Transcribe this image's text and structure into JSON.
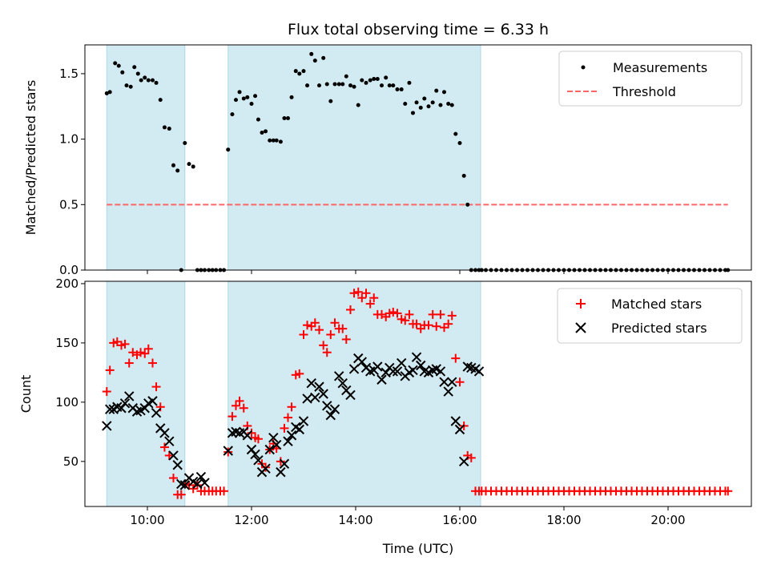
{
  "chart_data": {
    "title": "Flux total observing time = 6.33 h",
    "xlabel": "Time (UTC)",
    "x_unit": "hours UTC",
    "xlim": [
      8.8,
      21.6
    ],
    "x_ticks": [
      {
        "value": 10,
        "label": "10:00"
      },
      {
        "value": 12,
        "label": "12:00"
      },
      {
        "value": 14,
        "label": "14:00"
      },
      {
        "value": 16,
        "label": "16:00"
      },
      {
        "value": 18,
        "label": "18:00"
      },
      {
        "value": 20,
        "label": "20:00"
      }
    ],
    "observing_windows": [
      [
        9.22,
        10.72
      ],
      [
        11.55,
        16.4
      ]
    ],
    "colors": {
      "window": "#add8e6",
      "measurement": "#000000",
      "threshold": "#ff6666",
      "matched": "#ff0000",
      "predicted": "#000000"
    },
    "top_panel": {
      "type": "scatter",
      "ylabel": "Matched/Predicted stars",
      "ylim": [
        0,
        1.72
      ],
      "y_ticks": [
        0.0,
        0.5,
        1.0,
        1.5
      ],
      "y_tick_labels": [
        "0.0",
        "0.5",
        "1.0",
        "1.5"
      ],
      "legend": {
        "position": "top-right",
        "entries": [
          "Measurements",
          "Threshold"
        ]
      },
      "threshold": {
        "name": "Threshold",
        "value": 0.5,
        "x_range": [
          9.22,
          21.15
        ],
        "style": "dashed"
      },
      "measurements": {
        "name": "Measurements",
        "x": [
          9.22,
          9.28,
          9.38,
          9.45,
          9.52,
          9.6,
          9.68,
          9.75,
          9.82,
          9.88,
          9.95,
          10.02,
          10.1,
          10.17,
          10.25,
          10.33,
          10.42,
          10.5,
          10.58,
          10.65,
          10.72,
          10.8,
          10.88,
          10.96,
          11.03,
          11.1,
          11.18,
          11.25,
          11.32,
          11.4,
          11.47,
          11.55,
          11.63,
          11.7,
          11.77,
          11.85,
          11.92,
          12.0,
          12.07,
          12.13,
          12.2,
          12.27,
          12.35,
          12.42,
          12.48,
          12.56,
          12.63,
          12.7,
          12.77,
          12.85,
          12.92,
          13.0,
          13.07,
          13.15,
          13.22,
          13.3,
          13.38,
          13.45,
          13.52,
          13.6,
          13.68,
          13.75,
          13.82,
          13.9,
          13.97,
          14.05,
          14.12,
          14.2,
          14.28,
          14.35,
          14.42,
          14.5,
          14.58,
          14.65,
          14.72,
          14.8,
          14.88,
          14.95,
          15.03,
          15.1,
          15.17,
          15.25,
          15.32,
          15.4,
          15.48,
          15.55,
          15.63,
          15.7,
          15.78,
          15.85,
          15.92,
          16.0,
          16.08,
          16.15,
          16.22,
          16.3,
          16.37,
          16.42,
          16.5,
          16.6,
          16.7,
          16.8,
          16.9,
          17.0,
          17.1,
          17.2,
          17.3,
          17.4,
          17.5,
          17.6,
          17.7,
          17.8,
          17.9,
          18.0,
          18.1,
          18.2,
          18.3,
          18.4,
          18.5,
          18.6,
          18.7,
          18.8,
          18.9,
          19.0,
          19.1,
          19.2,
          19.3,
          19.4,
          19.5,
          19.6,
          19.7,
          19.8,
          19.9,
          20.0,
          20.1,
          20.2,
          20.3,
          20.4,
          20.5,
          20.6,
          20.7,
          20.8,
          20.9,
          21.0,
          21.1,
          21.15
        ],
        "y": [
          1.35,
          1.36,
          1.58,
          1.56,
          1.51,
          1.41,
          1.4,
          1.55,
          1.5,
          1.45,
          1.47,
          1.45,
          1.45,
          1.43,
          1.3,
          1.09,
          1.08,
          0.8,
          0.76,
          0.0,
          0.97,
          0.81,
          0.79,
          0.0,
          0.0,
          0.0,
          0.0,
          0.0,
          0.0,
          0.0,
          0.0,
          0.92,
          1.19,
          1.3,
          1.36,
          1.31,
          1.32,
          1.27,
          1.33,
          1.15,
          1.05,
          1.06,
          0.99,
          0.99,
          0.99,
          0.98,
          1.16,
          1.16,
          1.32,
          1.52,
          1.5,
          1.52,
          1.41,
          1.65,
          1.6,
          1.41,
          1.62,
          1.42,
          1.29,
          1.42,
          1.42,
          1.42,
          1.48,
          1.41,
          1.4,
          1.26,
          1.45,
          1.43,
          1.45,
          1.46,
          1.46,
          1.41,
          1.47,
          1.41,
          1.41,
          1.38,
          1.38,
          1.27,
          1.43,
          1.2,
          1.28,
          1.24,
          1.31,
          1.25,
          1.28,
          1.37,
          1.26,
          1.36,
          1.27,
          1.26,
          1.04,
          0.97,
          0.72,
          0.5,
          0,
          0,
          0,
          0,
          0,
          0,
          0,
          0,
          0,
          0,
          0,
          0,
          0,
          0,
          0,
          0,
          0,
          0,
          0,
          0,
          0,
          0,
          0,
          0,
          0,
          0,
          0,
          0,
          0,
          0,
          0,
          0,
          0,
          0,
          0,
          0,
          0,
          0,
          0,
          0,
          0,
          0,
          0,
          0,
          0,
          0,
          0,
          0,
          0,
          0,
          0,
          0
        ]
      }
    },
    "bottom_panel": {
      "type": "scatter",
      "ylabel": "Count",
      "ylim": [
        12,
        202
      ],
      "y_ticks": [
        50,
        100,
        150,
        200
      ],
      "y_tick_labels": [
        "50",
        "100",
        "150",
        "200"
      ],
      "legend": {
        "position": "top-right",
        "entries": [
          "Matched stars",
          "Predicted stars"
        ]
      },
      "series": [
        {
          "name": "Matched stars",
          "marker": "plus",
          "x": [
            9.22,
            9.28,
            9.35,
            9.42,
            9.5,
            9.57,
            9.65,
            9.72,
            9.8,
            9.87,
            9.95,
            10.02,
            10.1,
            10.17,
            10.25,
            10.33,
            10.42,
            10.5,
            10.58,
            10.65,
            10.72,
            10.8,
            10.88,
            10.96,
            11.03,
            11.1,
            11.18,
            11.25,
            11.32,
            11.4,
            11.47,
            11.55,
            11.63,
            11.7,
            11.77,
            11.85,
            11.92,
            12.0,
            12.07,
            12.13,
            12.2,
            12.27,
            12.35,
            12.42,
            12.48,
            12.56,
            12.63,
            12.7,
            12.77,
            12.85,
            12.92,
            13.0,
            13.07,
            13.15,
            13.22,
            13.3,
            13.38,
            13.45,
            13.52,
            13.6,
            13.68,
            13.75,
            13.82,
            13.9,
            13.97,
            14.05,
            14.12,
            14.2,
            14.28,
            14.35,
            14.42,
            14.5,
            14.58,
            14.65,
            14.72,
            14.8,
            14.88,
            14.95,
            15.03,
            15.1,
            15.17,
            15.25,
            15.32,
            15.4,
            15.48,
            15.55,
            15.63,
            15.7,
            15.78,
            15.85,
            15.92,
            16.0,
            16.08,
            16.15,
            16.22,
            16.3,
            16.37,
            16.42,
            16.5,
            16.6,
            16.7,
            16.8,
            16.9,
            17.0,
            17.1,
            17.2,
            17.3,
            17.4,
            17.5,
            17.6,
            17.7,
            17.8,
            17.9,
            18.0,
            18.1,
            18.2,
            18.3,
            18.4,
            18.5,
            18.6,
            18.7,
            18.8,
            18.9,
            19.0,
            19.1,
            19.2,
            19.3,
            19.4,
            19.5,
            19.6,
            19.7,
            19.8,
            19.9,
            20.0,
            20.1,
            20.2,
            20.3,
            20.4,
            20.5,
            20.6,
            20.7,
            20.8,
            20.9,
            21.0,
            21.1,
            21.15
          ],
          "y": [
            109,
            127,
            150,
            151,
            148,
            149,
            133,
            142,
            140,
            142,
            141,
            145,
            133,
            113,
            96,
            62,
            55,
            36,
            22,
            22,
            31,
            30,
            27,
            30,
            25,
            25,
            25,
            25,
            25,
            25,
            25,
            58,
            88,
            97,
            101,
            95,
            80,
            74,
            70,
            69,
            48,
            45,
            60,
            65,
            61,
            50,
            78,
            87,
            96,
            123,
            124,
            157,
            165,
            164,
            167,
            161,
            148,
            142,
            157,
            167,
            162,
            162,
            153,
            178,
            192,
            193,
            188,
            192,
            183,
            188,
            174,
            174,
            172,
            175,
            176,
            175,
            170,
            169,
            174,
            166,
            166,
            162,
            165,
            165,
            174,
            164,
            174,
            163,
            166,
            173,
            137,
            117,
            80,
            55,
            53,
            25,
            25,
            25,
            25,
            25,
            25,
            25,
            25,
            25,
            25,
            25,
            25,
            25,
            25,
            25,
            25,
            25,
            25,
            25,
            25,
            25,
            25,
            25,
            25,
            25,
            25,
            25,
            25,
            25,
            25,
            25,
            25,
            25,
            25,
            25,
            25,
            25,
            25,
            25,
            25,
            25,
            25,
            25,
            25,
            25,
            25,
            25,
            25,
            25,
            25,
            25
          ]
        },
        {
          "name": "Predicted stars",
          "marker": "x",
          "x": [
            9.22,
            9.28,
            9.35,
            9.42,
            9.5,
            9.57,
            9.65,
            9.72,
            9.8,
            9.87,
            9.95,
            10.02,
            10.1,
            10.17,
            10.25,
            10.33,
            10.42,
            10.5,
            10.58,
            10.65,
            10.72,
            10.8,
            10.88,
            10.96,
            11.03,
            11.1,
            11.55,
            11.63,
            11.7,
            11.77,
            11.85,
            11.92,
            12.0,
            12.07,
            12.13,
            12.2,
            12.27,
            12.35,
            12.42,
            12.48,
            12.56,
            12.63,
            12.7,
            12.77,
            12.85,
            12.92,
            13.0,
            13.07,
            13.15,
            13.22,
            13.3,
            13.38,
            13.45,
            13.52,
            13.6,
            13.68,
            13.75,
            13.82,
            13.9,
            13.97,
            14.05,
            14.12,
            14.2,
            14.28,
            14.35,
            14.42,
            14.5,
            14.58,
            14.65,
            14.72,
            14.8,
            14.88,
            14.95,
            15.03,
            15.1,
            15.17,
            15.25,
            15.32,
            15.4,
            15.48,
            15.55,
            15.63,
            15.7,
            15.78,
            15.85,
            15.92,
            16.0,
            16.08,
            16.15,
            16.22,
            16.3,
            16.37
          ],
          "y": [
            80,
            94,
            94,
            96,
            95,
            99,
            105,
            95,
            92,
            93,
            95,
            99,
            101,
            91,
            78,
            74,
            67,
            55,
            47,
            31,
            30,
            36,
            33,
            31,
            37,
            32,
            59,
            74,
            75,
            74,
            75,
            72,
            60,
            56,
            51,
            41,
            44,
            60,
            70,
            64,
            41,
            48,
            67,
            72,
            79,
            77,
            84,
            103,
            116,
            104,
            113,
            107,
            97,
            89,
            94,
            122,
            116,
            110,
            106,
            128,
            137,
            134,
            129,
            126,
            127,
            130,
            119,
            125,
            129,
            126,
            126,
            133,
            122,
            125,
            127,
            138,
            131,
            126,
            125,
            127,
            128,
            126,
            117,
            109,
            117,
            84,
            77,
            50,
            130,
            129,
            128,
            126
          ]
        }
      ]
    }
  }
}
